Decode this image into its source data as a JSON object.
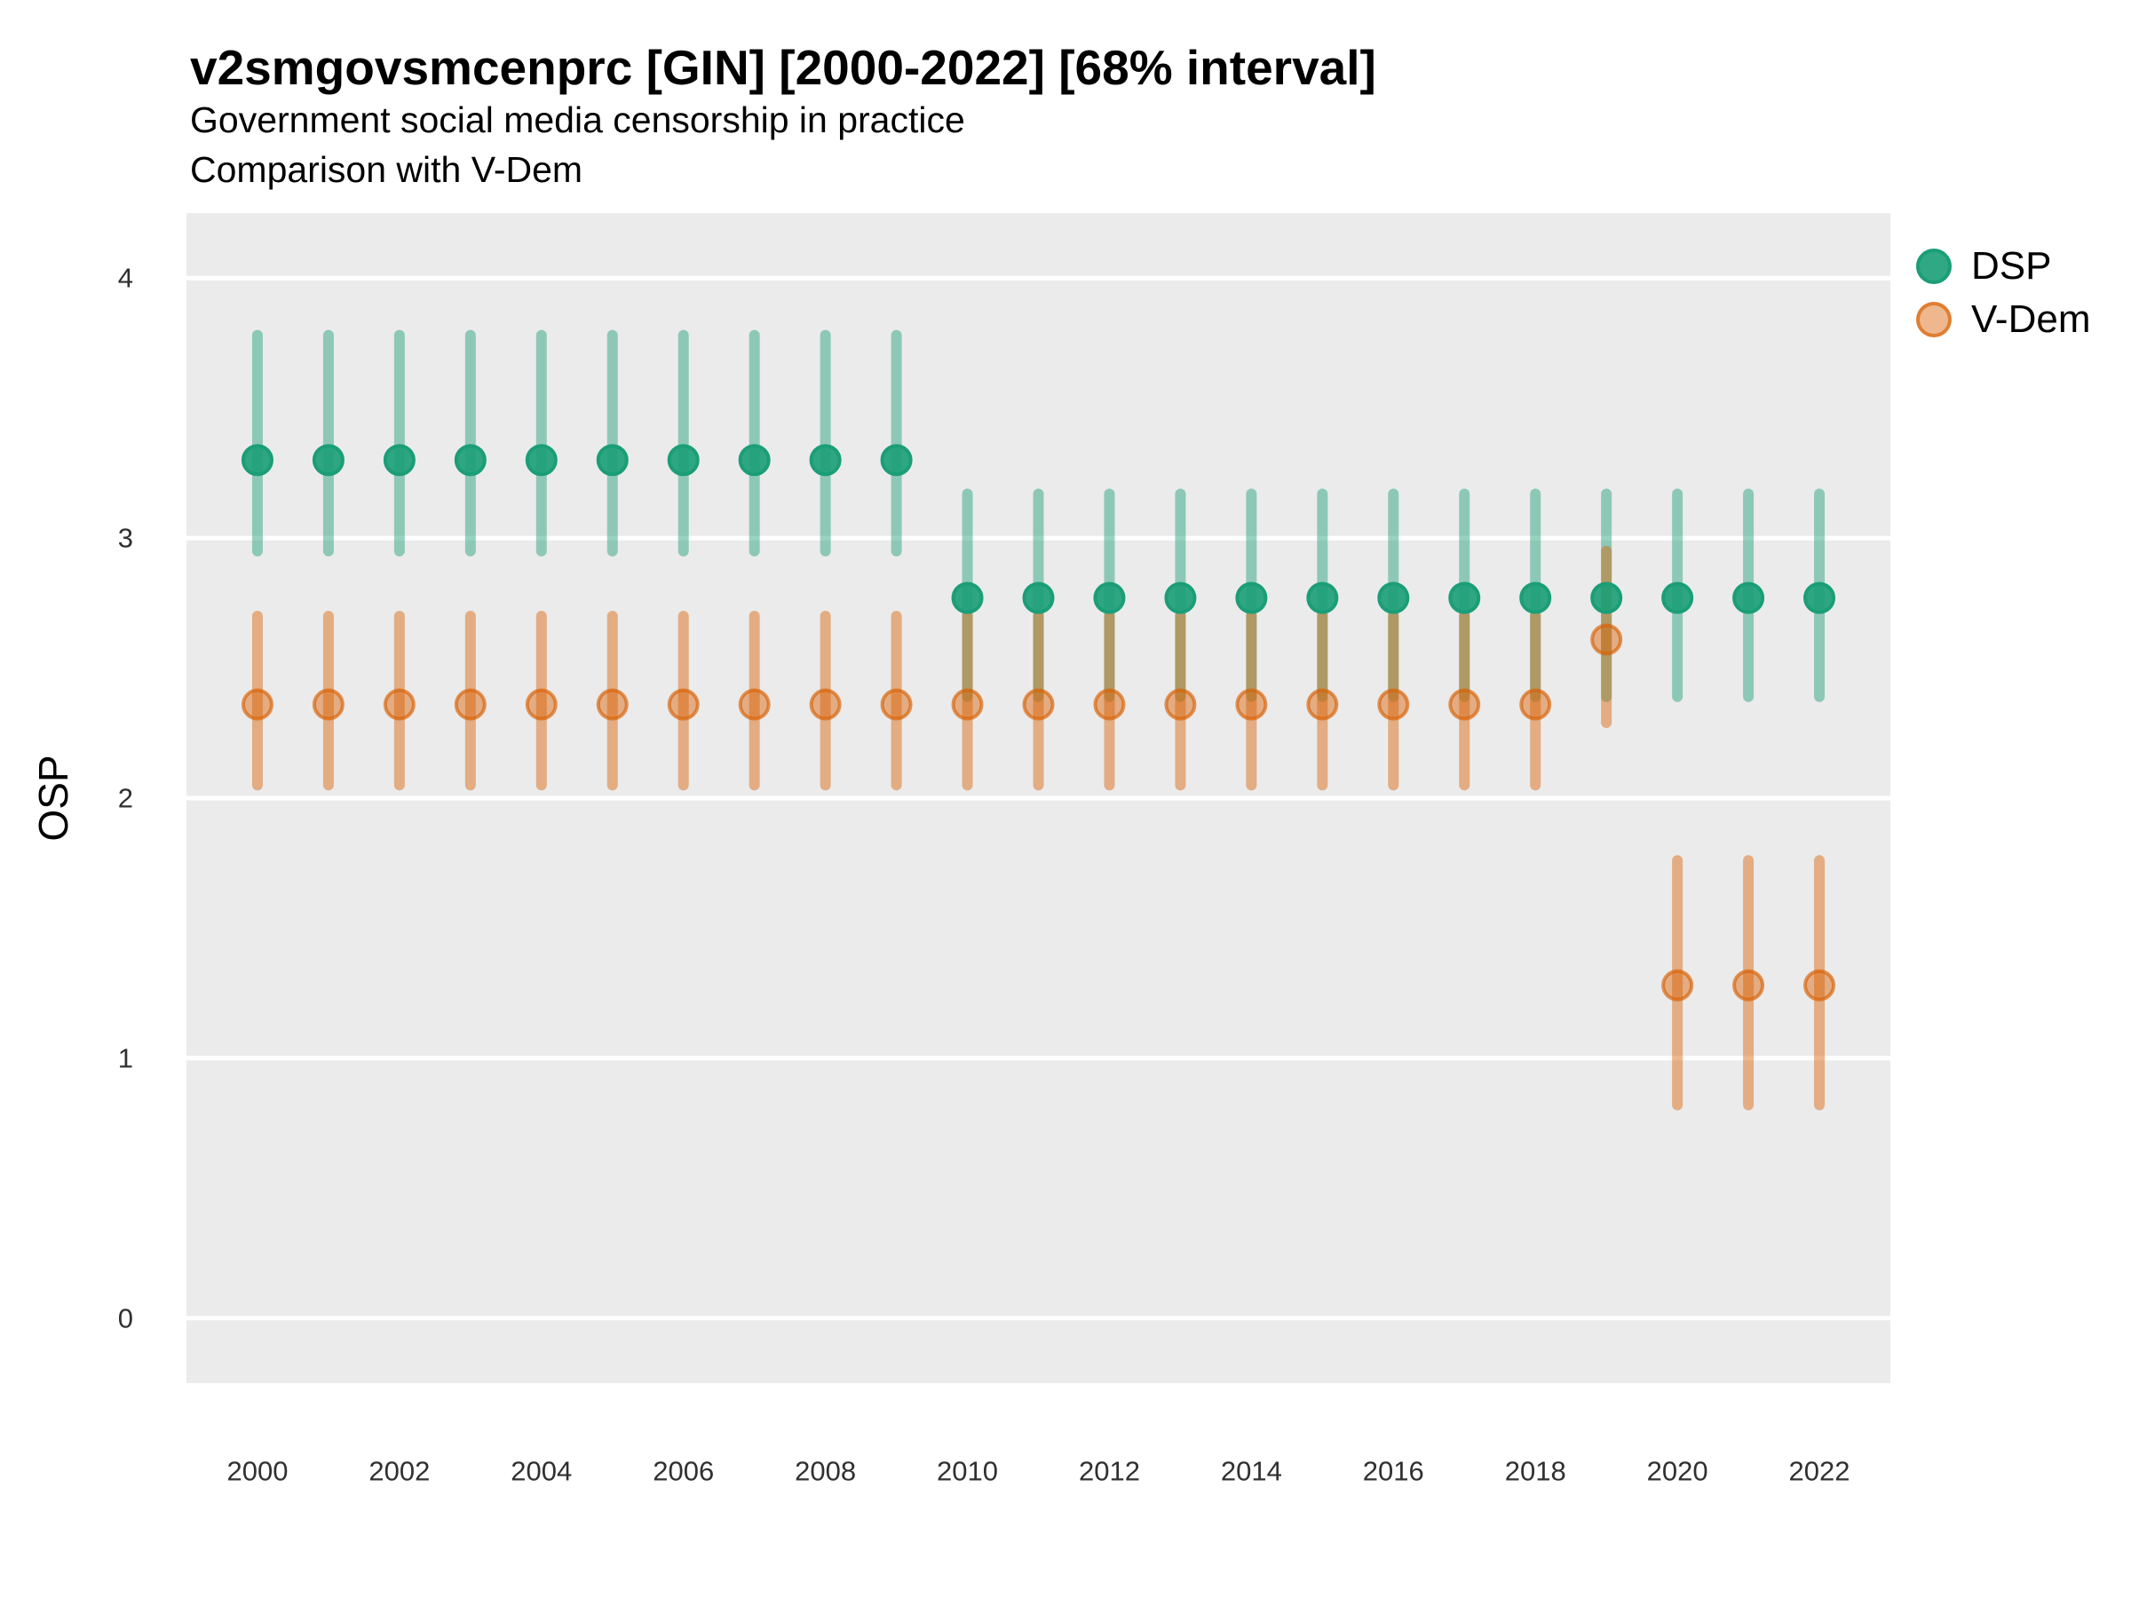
{
  "chart_data": {
    "type": "scatter",
    "title": "v2smgovsmcenprc [GIN] [2000-2022] [68% interval]",
    "subtitle_line1": "Government social media censorship in practice",
    "subtitle_line2": "Comparison with V-Dem",
    "xlabel": "",
    "ylabel": "OSP",
    "interval_level": "68%",
    "xlim": [
      1999.0,
      2023.0
    ],
    "ylim": [
      -0.25,
      4.25
    ],
    "xticks": [
      2000,
      2002,
      2004,
      2006,
      2008,
      2010,
      2012,
      2014,
      2016,
      2018,
      2020,
      2022
    ],
    "yticks": [
      0,
      1,
      2,
      3,
      4
    ],
    "grid": "horizontal-major-white-on-gray",
    "legend_position": "right-top-outside",
    "colors": {
      "dsp": "#1B9E77",
      "vdem": "#D95F02",
      "panel_bg": "#EBEBEB",
      "gridline": "#FFFFFF",
      "title_text": "#000000",
      "axis_text": "#303030"
    },
    "legend": [
      {
        "label": "DSP",
        "key": "dsp"
      },
      {
        "label": "V-Dem",
        "key": "vdem"
      }
    ],
    "series": [
      {
        "name": "DSP",
        "key": "dsp",
        "points": [
          {
            "x": 2000,
            "y": 3.3,
            "lo": 2.95,
            "hi": 3.78
          },
          {
            "x": 2001,
            "y": 3.3,
            "lo": 2.95,
            "hi": 3.78
          },
          {
            "x": 2002,
            "y": 3.3,
            "lo": 2.95,
            "hi": 3.78
          },
          {
            "x": 2003,
            "y": 3.3,
            "lo": 2.95,
            "hi": 3.78
          },
          {
            "x": 2004,
            "y": 3.3,
            "lo": 2.95,
            "hi": 3.78
          },
          {
            "x": 2005,
            "y": 3.3,
            "lo": 2.95,
            "hi": 3.78
          },
          {
            "x": 2006,
            "y": 3.3,
            "lo": 2.95,
            "hi": 3.78
          },
          {
            "x": 2007,
            "y": 3.3,
            "lo": 2.95,
            "hi": 3.78
          },
          {
            "x": 2008,
            "y": 3.3,
            "lo": 2.95,
            "hi": 3.78
          },
          {
            "x": 2009,
            "y": 3.3,
            "lo": 2.95,
            "hi": 3.78
          },
          {
            "x": 2010,
            "y": 2.77,
            "lo": 2.39,
            "hi": 3.17
          },
          {
            "x": 2011,
            "y": 2.77,
            "lo": 2.39,
            "hi": 3.17
          },
          {
            "x": 2012,
            "y": 2.77,
            "lo": 2.39,
            "hi": 3.17
          },
          {
            "x": 2013,
            "y": 2.77,
            "lo": 2.39,
            "hi": 3.17
          },
          {
            "x": 2014,
            "y": 2.77,
            "lo": 2.39,
            "hi": 3.17
          },
          {
            "x": 2015,
            "y": 2.77,
            "lo": 2.39,
            "hi": 3.17
          },
          {
            "x": 2016,
            "y": 2.77,
            "lo": 2.39,
            "hi": 3.17
          },
          {
            "x": 2017,
            "y": 2.77,
            "lo": 2.39,
            "hi": 3.17
          },
          {
            "x": 2018,
            "y": 2.77,
            "lo": 2.39,
            "hi": 3.17
          },
          {
            "x": 2019,
            "y": 2.77,
            "lo": 2.39,
            "hi": 3.17
          },
          {
            "x": 2020,
            "y": 2.77,
            "lo": 2.39,
            "hi": 3.17
          },
          {
            "x": 2021,
            "y": 2.77,
            "lo": 2.39,
            "hi": 3.17
          },
          {
            "x": 2022,
            "y": 2.77,
            "lo": 2.39,
            "hi": 3.17
          }
        ]
      },
      {
        "name": "V-Dem",
        "key": "vdem",
        "points": [
          {
            "x": 2000,
            "y": 2.36,
            "lo": 2.05,
            "hi": 2.7
          },
          {
            "x": 2001,
            "y": 2.36,
            "lo": 2.05,
            "hi": 2.7
          },
          {
            "x": 2002,
            "y": 2.36,
            "lo": 2.05,
            "hi": 2.7
          },
          {
            "x": 2003,
            "y": 2.36,
            "lo": 2.05,
            "hi": 2.7
          },
          {
            "x": 2004,
            "y": 2.36,
            "lo": 2.05,
            "hi": 2.7
          },
          {
            "x": 2005,
            "y": 2.36,
            "lo": 2.05,
            "hi": 2.7
          },
          {
            "x": 2006,
            "y": 2.36,
            "lo": 2.05,
            "hi": 2.7
          },
          {
            "x": 2007,
            "y": 2.36,
            "lo": 2.05,
            "hi": 2.7
          },
          {
            "x": 2008,
            "y": 2.36,
            "lo": 2.05,
            "hi": 2.7
          },
          {
            "x": 2009,
            "y": 2.36,
            "lo": 2.05,
            "hi": 2.7
          },
          {
            "x": 2010,
            "y": 2.36,
            "lo": 2.05,
            "hi": 2.7
          },
          {
            "x": 2011,
            "y": 2.36,
            "lo": 2.05,
            "hi": 2.7
          },
          {
            "x": 2012,
            "y": 2.36,
            "lo": 2.05,
            "hi": 2.7
          },
          {
            "x": 2013,
            "y": 2.36,
            "lo": 2.05,
            "hi": 2.7
          },
          {
            "x": 2014,
            "y": 2.36,
            "lo": 2.05,
            "hi": 2.7
          },
          {
            "x": 2015,
            "y": 2.36,
            "lo": 2.05,
            "hi": 2.7
          },
          {
            "x": 2016,
            "y": 2.36,
            "lo": 2.05,
            "hi": 2.7
          },
          {
            "x": 2017,
            "y": 2.36,
            "lo": 2.05,
            "hi": 2.7
          },
          {
            "x": 2018,
            "y": 2.36,
            "lo": 2.05,
            "hi": 2.7
          },
          {
            "x": 2019,
            "y": 2.61,
            "lo": 2.29,
            "hi": 2.95
          },
          {
            "x": 2020,
            "y": 1.28,
            "lo": 0.82,
            "hi": 1.76
          },
          {
            "x": 2021,
            "y": 1.28,
            "lo": 0.82,
            "hi": 1.76
          },
          {
            "x": 2022,
            "y": 1.28,
            "lo": 0.82,
            "hi": 1.76
          }
        ]
      }
    ]
  }
}
